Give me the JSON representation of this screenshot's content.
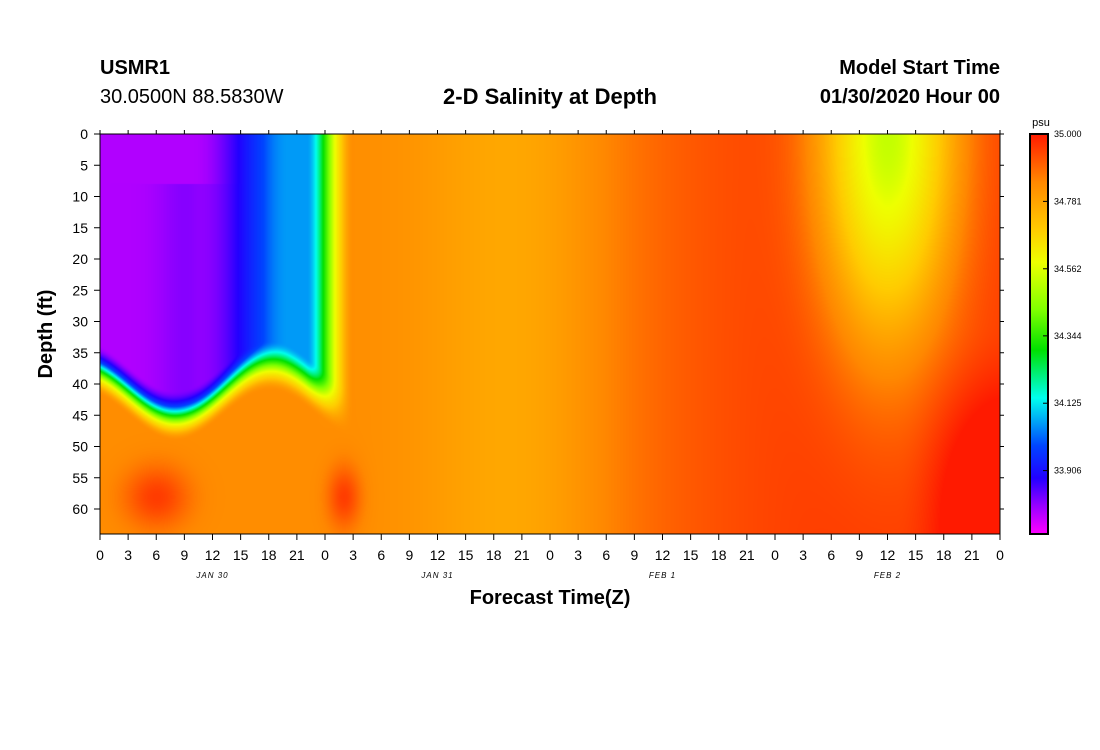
{
  "header": {
    "station": "USMR1",
    "coordinates": "30.0500N 88.5830W",
    "title": "2-D Salinity at Depth",
    "model_start_label": "Model Start Time",
    "model_start_value": "01/30/2020 Hour 00"
  },
  "chart_data": {
    "type": "heatmap",
    "title": "2-D Salinity at Depth",
    "xlabel": "Forecast Time(Z)",
    "ylabel": "Depth (ft)",
    "x_range_hours": [
      0,
      96
    ],
    "ylim": [
      0,
      64
    ],
    "y_inverted": true,
    "x_tick_labels": [
      "0",
      "3",
      "6",
      "9",
      "12",
      "15",
      "18",
      "21",
      "0",
      "3",
      "6",
      "9",
      "12",
      "15",
      "18",
      "21",
      "0",
      "3",
      "6",
      "9",
      "12",
      "15",
      "18",
      "21",
      "0",
      "3",
      "6",
      "9",
      "12",
      "15",
      "18",
      "21",
      "0"
    ],
    "day_labels": [
      {
        "label": "JAN 30",
        "hour": 12
      },
      {
        "label": "JAN 31",
        "hour": 36
      },
      {
        "label": "FEB 1",
        "hour": 60
      },
      {
        "label": "FEB 2",
        "hour": 84
      }
    ],
    "y_ticks": [
      0,
      5,
      10,
      15,
      20,
      25,
      30,
      35,
      40,
      45,
      50,
      55,
      60
    ],
    "colorbar": {
      "unit": "psu",
      "ticks": [
        "35.000",
        "34.781",
        "34.562",
        "34.344",
        "34.125",
        "33.906"
      ],
      "tick_values": [
        35.0,
        34.781,
        34.562,
        34.344,
        34.125,
        33.906
      ],
      "min": 33.7,
      "max": 35.0,
      "colors": [
        "#ff00ff",
        "#9900ff",
        "#2200ff",
        "#0044ff",
        "#00ffee",
        "#00e000",
        "#7fff00",
        "#eeff00",
        "#ffcc00",
        "#ff8800",
        "#ff1a00"
      ]
    }
  }
}
